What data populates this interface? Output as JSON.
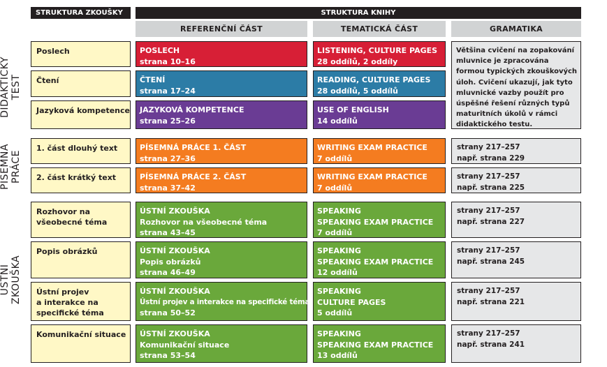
{
  "headers": {
    "struktura_zkousky": "STRUKTURA ZKOUŠKY",
    "struktura_knihy": "STRUKTURA KNIHY",
    "referencni_cast": "REFERENČNÍ ČÁST",
    "tematicka_cast": "TEMATICKÁ ČÁST",
    "gramatika": "GRAMATIKA"
  },
  "sections": {
    "didakticky_test": [
      "DIDAKTICKÝ",
      "TEST"
    ],
    "pisemna_prace": [
      "PÍSEMNÁ",
      "PRÁCE"
    ],
    "ustni_zkouska": [
      "ÚSTNÍ",
      "ZKOUŠKA"
    ]
  },
  "rows": [
    {
      "exam": [
        "Poslech"
      ],
      "ref": [
        "POSLECH",
        "strana 10–16"
      ],
      "tem": [
        "LISTENING, CULTURE PAGES",
        "28 oddílů, 2 oddíly"
      ]
    },
    {
      "exam": [
        "Čtení"
      ],
      "ref": [
        "ČTENÍ",
        "strana 17–24"
      ],
      "tem": [
        "READING, CULTURE PAGES",
        "28 oddílů, 5 oddílů"
      ]
    },
    {
      "exam": [
        "Jazyková kompetence"
      ],
      "ref": [
        "JAZYKOVÁ KOMPETENCE",
        "strana 25–26"
      ],
      "tem": [
        "USE OF ENGLISH",
        "14 oddílů"
      ]
    },
    {
      "exam": [
        "1. část dlouhý text"
      ],
      "ref": [
        "PÍSEMNÁ PRÁCE 1. ČÁST",
        "strana 27–36"
      ],
      "tem": [
        "WRITING EXAM PRACTICE",
        "7 oddílů"
      ],
      "gram": [
        "strany 217–257",
        "např. strana 229"
      ]
    },
    {
      "exam": [
        "2. část krátký text"
      ],
      "ref": [
        "PÍSEMNÁ PRÁCE 2. ČÁST",
        "strana 37–42"
      ],
      "tem": [
        "WRITING EXAM PRACTICE",
        "7 oddílů"
      ],
      "gram": [
        "strany 217–257",
        "např. strana 225"
      ]
    },
    {
      "exam": [
        "Rozhovor na",
        "všeobecné téma"
      ],
      "ref": [
        "ÚSTNÍ ZKOUŠKA",
        "Rozhovor na všeobecné téma",
        "strana 43–45"
      ],
      "tem": [
        "SPEAKING",
        "SPEAKING EXAM PRACTICE",
        "7 oddílů"
      ],
      "gram": [
        "strany 217–257",
        "např. strana 227"
      ]
    },
    {
      "exam": [
        "Popis obrázků"
      ],
      "ref": [
        "ÚSTNÍ ZKOUŠKA",
        "Popis obrázků",
        "strana 46–49"
      ],
      "tem": [
        "SPEAKING",
        "SPEAKING EXAM PRACTICE",
        "12 oddílů"
      ],
      "gram": [
        "strany 217–257",
        "např. strana 245"
      ]
    },
    {
      "exam": [
        "Ústní projev",
        "a interakce na",
        "specifické téma"
      ],
      "ref": [
        "ÚSTNÍ ZKOUŠKA",
        "Ústní projev a interakce na specifické téma",
        "strana 50–52"
      ],
      "tem": [
        "SPEAKING",
        "CULTURE PAGES",
        "5 oddílů"
      ],
      "gram": [
        "strany 217–257",
        "např. strana 221"
      ]
    },
    {
      "exam": [
        "Komunikační  situace"
      ],
      "ref": [
        "ÚSTNÍ ZKOUŠKA",
        "Komunikační  situace",
        "strana 53–54"
      ],
      "tem": [
        "SPEAKING",
        "SPEAKING EXAM PRACTICE",
        "13 oddílů"
      ],
      "gram": [
        "strany 217–257",
        "např. strana 241"
      ]
    }
  ],
  "grammar_description": [
    "Většina cvičení na zopakování",
    "mluvnice je zpracována",
    "formou typických zkouškových",
    "úloh. Cvičení ukazují, jak tyto",
    "mluvnické vazby použít pro",
    "úspěšné řešení různých typů",
    "maturitních úkolů v rámci",
    "didaktického testu."
  ],
  "colors": {
    "red": "#d71f36",
    "blue": "#2c7ca6",
    "purple": "#6a3c94",
    "orange": "#f47c20",
    "green": "#6aa83b",
    "exam_bg": "#fff8c6",
    "grammar_bg": "#e6e7e8",
    "header_dark": "#231f20",
    "header_grey": "#d1d3d4"
  }
}
